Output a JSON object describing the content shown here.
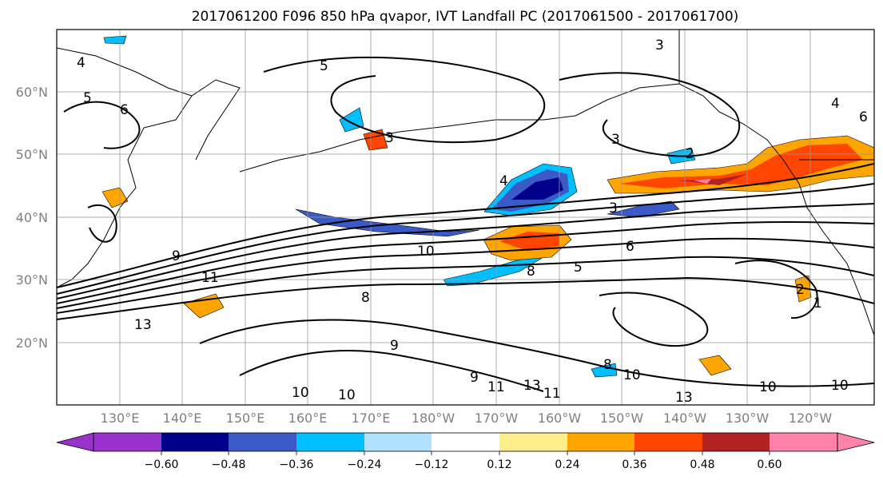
{
  "title": "2017061200 F096 850 hPa qvapor, IVT Landfall PC (2017061500 - 2017061700)",
  "map": {
    "lat_ticks": [
      "60°N",
      "50°N",
      "40°N",
      "30°N",
      "20°N"
    ],
    "lon_ticks": [
      "130°E",
      "140°E",
      "150°E",
      "160°E",
      "170°E",
      "180°W",
      "170°W",
      "160°W",
      "150°W",
      "140°W",
      "130°W",
      "120°W"
    ],
    "contour_labels": [
      "4",
      "3",
      "5",
      "6",
      "5",
      "4",
      "6",
      "3",
      "2",
      "4",
      "3",
      "3",
      "10",
      "8",
      "9",
      "11",
      "13",
      "8",
      "5",
      "6",
      "2",
      "1",
      "9",
      "10",
      "10",
      "13",
      "11",
      "10",
      "13",
      "8",
      "9",
      "10",
      "11",
      "10"
    ]
  },
  "colorbar": {
    "colors": [
      "#9932cc",
      "#00008b",
      "#3a5bc7",
      "#00bfff",
      "#b0e2ff",
      "#ffffff",
      "#ffec8b",
      "#ffa500",
      "#ff4500",
      "#b22222",
      "#ff82ab"
    ],
    "tick_labels": [
      "−0.60",
      "−0.48",
      "−0.36",
      "−0.24",
      "−0.12",
      "0.12",
      "0.24",
      "0.36",
      "0.48",
      "0.60"
    ]
  }
}
